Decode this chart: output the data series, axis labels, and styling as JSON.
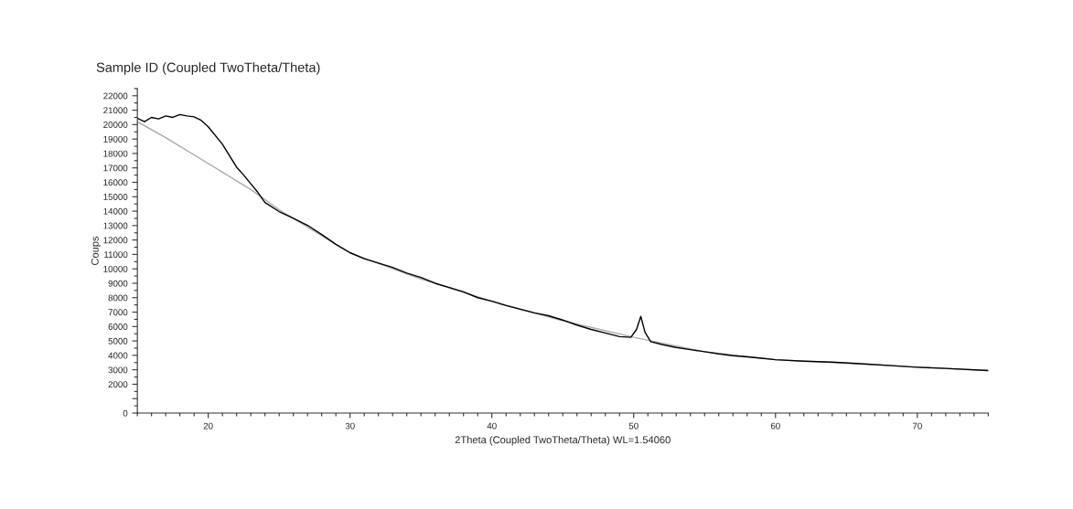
{
  "chart_data": {
    "type": "line",
    "title": "Sample ID (Coupled TwoTheta/Theta)",
    "xlabel": "2Theta (Coupled TwoTheta/Theta) WL=1.54060",
    "ylabel": "Coups",
    "xlim": [
      15,
      75
    ],
    "xticks": [
      20,
      30,
      40,
      50,
      60,
      70
    ],
    "ylim": [
      0,
      22500
    ],
    "yticks": [
      0,
      {
        "value": 1000,
        "label": null
      },
      2000,
      3000,
      4000,
      5000,
      6000,
      7000,
      8000,
      9000,
      10000,
      11000,
      12000,
      13000,
      14000,
      15000,
      16000,
      17000,
      18000,
      19000,
      20000,
      21000,
      22000
    ],
    "grid": false,
    "legend": false,
    "marker": "none",
    "line_style": "solid",
    "series": [
      {
        "color": "#aaaaaa",
        "x": [
          15,
          17,
          19,
          21,
          23,
          25,
          30,
          35,
          40,
          45,
          50,
          55,
          60,
          65,
          70,
          75
        ],
        "values": [
          20200,
          19100,
          17900,
          16700,
          15500,
          14100,
          11100,
          9300,
          7750,
          6400,
          5250,
          4250,
          3700,
          3450,
          3180,
          2950
        ]
      },
      {
        "color": "#000000",
        "x": [
          15,
          15.5,
          16,
          16.5,
          17,
          17.5,
          18,
          18.5,
          19,
          19.5,
          20,
          21,
          22,
          22.5,
          23,
          23.5,
          24,
          25,
          26,
          27,
          28,
          29,
          30,
          31,
          32,
          33,
          34,
          35,
          36,
          37,
          38,
          39,
          40,
          41,
          42,
          43,
          44,
          45,
          46,
          47,
          48,
          49,
          49.8,
          50.2,
          50.5,
          50.8,
          51.2,
          52,
          53,
          54,
          55,
          56,
          57,
          58,
          59,
          60,
          62,
          64,
          66,
          68,
          70,
          72,
          75
        ],
        "values": [
          20450,
          20200,
          20500,
          20400,
          20600,
          20500,
          20700,
          20600,
          20540,
          20300,
          19850,
          18640,
          17050,
          16500,
          15900,
          15300,
          14600,
          13970,
          13500,
          13020,
          12380,
          11700,
          11120,
          10700,
          10400,
          10100,
          9700,
          9400,
          9000,
          8700,
          8400,
          8000,
          7750,
          7450,
          7200,
          6950,
          6750,
          6450,
          6100,
          5800,
          5550,
          5300,
          5250,
          5800,
          6700,
          5600,
          4950,
          4750,
          4550,
          4400,
          4250,
          4100,
          3980,
          3900,
          3800,
          3700,
          3600,
          3530,
          3420,
          3300,
          3180,
          3100,
          2950
        ]
      }
    ]
  }
}
